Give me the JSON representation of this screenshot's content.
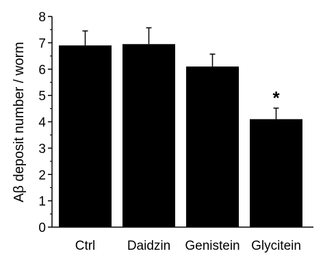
{
  "chart_data": {
    "type": "bar",
    "categories": [
      "Ctrl",
      "Daidzin",
      "Genistein",
      "Glycitein"
    ],
    "values": [
      6.9,
      6.95,
      6.1,
      4.1
    ],
    "errors": [
      0.55,
      0.62,
      0.47,
      0.42
    ],
    "ylabel": "Aβ deposit number / worm",
    "xlabel": "",
    "ylim": [
      0,
      8
    ],
    "yticks": [
      "0",
      "1",
      "2",
      "3",
      "4",
      "5",
      "6",
      "7",
      "8"
    ],
    "annotations": [
      {
        "category": "Glycitein",
        "text": "*"
      }
    ],
    "bar_color": "#000000",
    "grid": false
  }
}
